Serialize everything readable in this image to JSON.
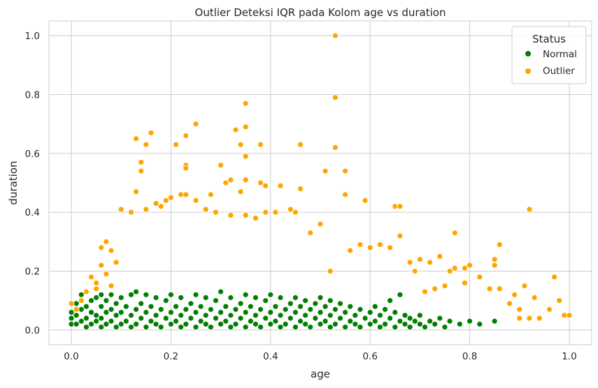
{
  "chart_data": {
    "type": "scatter",
    "title": "Outlier Deteksi IQR pada Kolom age vs duration",
    "xlabel": "age",
    "ylabel": "duration",
    "xlim": [
      -0.045,
      1.045
    ],
    "ylim": [
      -0.05,
      1.05
    ],
    "xticks": [
      "0.0",
      "0.2",
      "0.4",
      "0.6",
      "0.8",
      "1.0"
    ],
    "yticks": [
      "0.0",
      "0.2",
      "0.4",
      "0.6",
      "0.8",
      "1.0"
    ],
    "grid": true,
    "legend": {
      "title": "Status",
      "placement": "top-right",
      "entries": [
        {
          "label": "Normal",
          "color": "#007f00"
        },
        {
          "label": "Outlier",
          "color": "#ffa500"
        }
      ]
    },
    "series": [
      {
        "name": "Normal",
        "color": "#007f00",
        "points": [
          [
            0.0,
            0.02
          ],
          [
            0.0,
            0.04
          ],
          [
            0.0,
            0.06
          ],
          [
            0.01,
            0.09
          ],
          [
            0.01,
            0.05
          ],
          [
            0.01,
            0.02
          ],
          [
            0.02,
            0.03
          ],
          [
            0.02,
            0.07
          ],
          [
            0.02,
            0.12
          ],
          [
            0.03,
            0.01
          ],
          [
            0.03,
            0.04
          ],
          [
            0.03,
            0.08
          ],
          [
            0.04,
            0.02
          ],
          [
            0.04,
            0.06
          ],
          [
            0.04,
            0.1
          ],
          [
            0.05,
            0.03
          ],
          [
            0.05,
            0.05
          ],
          [
            0.05,
            0.11
          ],
          [
            0.06,
            0.01
          ],
          [
            0.06,
            0.04
          ],
          [
            0.06,
            0.08
          ],
          [
            0.06,
            0.12
          ],
          [
            0.07,
            0.02
          ],
          [
            0.07,
            0.06
          ],
          [
            0.07,
            0.1
          ],
          [
            0.08,
            0.03
          ],
          [
            0.08,
            0.07
          ],
          [
            0.08,
            0.12
          ],
          [
            0.09,
            0.01
          ],
          [
            0.09,
            0.05
          ],
          [
            0.09,
            0.09
          ],
          [
            0.1,
            0.02
          ],
          [
            0.1,
            0.06
          ],
          [
            0.1,
            0.11
          ],
          [
            0.11,
            0.03
          ],
          [
            0.11,
            0.08
          ],
          [
            0.12,
            0.01
          ],
          [
            0.12,
            0.05
          ],
          [
            0.12,
            0.12
          ],
          [
            0.13,
            0.02
          ],
          [
            0.13,
            0.07
          ],
          [
            0.13,
            0.13
          ],
          [
            0.14,
            0.04
          ],
          [
            0.14,
            0.09
          ],
          [
            0.15,
            0.01
          ],
          [
            0.15,
            0.06
          ],
          [
            0.15,
            0.12
          ],
          [
            0.16,
            0.03
          ],
          [
            0.16,
            0.08
          ],
          [
            0.17,
            0.02
          ],
          [
            0.17,
            0.05
          ],
          [
            0.17,
            0.11
          ],
          [
            0.18,
            0.01
          ],
          [
            0.18,
            0.07
          ],
          [
            0.19,
            0.04
          ],
          [
            0.19,
            0.1
          ],
          [
            0.2,
            0.02
          ],
          [
            0.2,
            0.06
          ],
          [
            0.2,
            0.12
          ],
          [
            0.21,
            0.03
          ],
          [
            0.21,
            0.08
          ],
          [
            0.22,
            0.01
          ],
          [
            0.22,
            0.05
          ],
          [
            0.22,
            0.11
          ],
          [
            0.23,
            0.02
          ],
          [
            0.23,
            0.07
          ],
          [
            0.24,
            0.04
          ],
          [
            0.24,
            0.09
          ],
          [
            0.25,
            0.01
          ],
          [
            0.25,
            0.06
          ],
          [
            0.25,
            0.12
          ],
          [
            0.26,
            0.03
          ],
          [
            0.26,
            0.08
          ],
          [
            0.27,
            0.02
          ],
          [
            0.27,
            0.05
          ],
          [
            0.27,
            0.11
          ],
          [
            0.28,
            0.01
          ],
          [
            0.28,
            0.07
          ],
          [
            0.29,
            0.04
          ],
          [
            0.29,
            0.1
          ],
          [
            0.3,
            0.02
          ],
          [
            0.3,
            0.06
          ],
          [
            0.3,
            0.13
          ],
          [
            0.31,
            0.03
          ],
          [
            0.31,
            0.08
          ],
          [
            0.32,
            0.01
          ],
          [
            0.32,
            0.05
          ],
          [
            0.32,
            0.11
          ],
          [
            0.33,
            0.02
          ],
          [
            0.33,
            0.07
          ],
          [
            0.34,
            0.04
          ],
          [
            0.34,
            0.09
          ],
          [
            0.35,
            0.01
          ],
          [
            0.35,
            0.06
          ],
          [
            0.35,
            0.12
          ],
          [
            0.36,
            0.03
          ],
          [
            0.36,
            0.08
          ],
          [
            0.37,
            0.02
          ],
          [
            0.37,
            0.05
          ],
          [
            0.37,
            0.11
          ],
          [
            0.38,
            0.01
          ],
          [
            0.38,
            0.07
          ],
          [
            0.39,
            0.04
          ],
          [
            0.39,
            0.1
          ],
          [
            0.4,
            0.02
          ],
          [
            0.4,
            0.06
          ],
          [
            0.4,
            0.12
          ],
          [
            0.41,
            0.03
          ],
          [
            0.41,
            0.08
          ],
          [
            0.42,
            0.01
          ],
          [
            0.42,
            0.05
          ],
          [
            0.42,
            0.11
          ],
          [
            0.43,
            0.02
          ],
          [
            0.43,
            0.07
          ],
          [
            0.44,
            0.04
          ],
          [
            0.44,
            0.09
          ],
          [
            0.45,
            0.01
          ],
          [
            0.45,
            0.06
          ],
          [
            0.45,
            0.11
          ],
          [
            0.46,
            0.03
          ],
          [
            0.46,
            0.08
          ],
          [
            0.47,
            0.02
          ],
          [
            0.47,
            0.05
          ],
          [
            0.47,
            0.1
          ],
          [
            0.48,
            0.01
          ],
          [
            0.48,
            0.07
          ],
          [
            0.49,
            0.04
          ],
          [
            0.49,
            0.09
          ],
          [
            0.5,
            0.02
          ],
          [
            0.5,
            0.06
          ],
          [
            0.5,
            0.11
          ],
          [
            0.51,
            0.03
          ],
          [
            0.51,
            0.08
          ],
          [
            0.52,
            0.01
          ],
          [
            0.52,
            0.05
          ],
          [
            0.52,
            0.1
          ],
          [
            0.53,
            0.02
          ],
          [
            0.53,
            0.07
          ],
          [
            0.54,
            0.04
          ],
          [
            0.54,
            0.09
          ],
          [
            0.55,
            0.01
          ],
          [
            0.55,
            0.06
          ],
          [
            0.56,
            0.03
          ],
          [
            0.56,
            0.08
          ],
          [
            0.57,
            0.02
          ],
          [
            0.57,
            0.05
          ],
          [
            0.58,
            0.01
          ],
          [
            0.58,
            0.07
          ],
          [
            0.59,
            0.04
          ],
          [
            0.6,
            0.02
          ],
          [
            0.6,
            0.06
          ],
          [
            0.61,
            0.03
          ],
          [
            0.61,
            0.08
          ],
          [
            0.62,
            0.01
          ],
          [
            0.62,
            0.05
          ],
          [
            0.63,
            0.02
          ],
          [
            0.63,
            0.07
          ],
          [
            0.64,
            0.04
          ],
          [
            0.64,
            0.1
          ],
          [
            0.65,
            0.01
          ],
          [
            0.65,
            0.06
          ],
          [
            0.66,
            0.03
          ],
          [
            0.66,
            0.12
          ],
          [
            0.67,
            0.02
          ],
          [
            0.67,
            0.05
          ],
          [
            0.68,
            0.01
          ],
          [
            0.68,
            0.04
          ],
          [
            0.69,
            0.03
          ],
          [
            0.7,
            0.02
          ],
          [
            0.7,
            0.05
          ],
          [
            0.71,
            0.01
          ],
          [
            0.72,
            0.03
          ],
          [
            0.73,
            0.02
          ],
          [
            0.74,
            0.04
          ],
          [
            0.75,
            0.01
          ],
          [
            0.76,
            0.03
          ],
          [
            0.78,
            0.02
          ],
          [
            0.8,
            0.03
          ],
          [
            0.82,
            0.02
          ],
          [
            0.85,
            0.03
          ]
        ]
      },
      {
        "name": "Outlier",
        "color": "#ffa500",
        "points": [
          [
            0.53,
            1.0
          ],
          [
            0.53,
            0.79
          ],
          [
            0.35,
            0.77
          ],
          [
            0.25,
            0.7
          ],
          [
            0.35,
            0.69
          ],
          [
            0.33,
            0.68
          ],
          [
            0.16,
            0.67
          ],
          [
            0.23,
            0.66
          ],
          [
            0.13,
            0.65
          ],
          [
            0.15,
            0.63
          ],
          [
            0.21,
            0.63
          ],
          [
            0.34,
            0.63
          ],
          [
            0.38,
            0.63
          ],
          [
            0.46,
            0.63
          ],
          [
            0.53,
            0.62
          ],
          [
            0.14,
            0.57
          ],
          [
            0.23,
            0.56
          ],
          [
            0.3,
            0.56
          ],
          [
            0.35,
            0.59
          ],
          [
            0.14,
            0.54
          ],
          [
            0.23,
            0.55
          ],
          [
            0.51,
            0.54
          ],
          [
            0.55,
            0.54
          ],
          [
            0.13,
            0.47
          ],
          [
            0.32,
            0.51
          ],
          [
            0.35,
            0.51
          ],
          [
            0.38,
            0.5
          ],
          [
            0.39,
            0.49
          ],
          [
            0.42,
            0.49
          ],
          [
            0.46,
            0.48
          ],
          [
            0.34,
            0.47
          ],
          [
            0.31,
            0.5
          ],
          [
            0.28,
            0.46
          ],
          [
            0.22,
            0.46
          ],
          [
            0.2,
            0.45
          ],
          [
            0.19,
            0.44
          ],
          [
            0.23,
            0.46
          ],
          [
            0.25,
            0.44
          ],
          [
            0.17,
            0.43
          ],
          [
            0.55,
            0.46
          ],
          [
            0.59,
            0.44
          ],
          [
            0.65,
            0.42
          ],
          [
            0.66,
            0.42
          ],
          [
            0.92,
            0.41
          ],
          [
            0.66,
            0.32
          ],
          [
            0.77,
            0.33
          ],
          [
            0.86,
            0.29
          ],
          [
            0.85,
            0.24
          ],
          [
            0.85,
            0.22
          ],
          [
            0.8,
            0.22
          ],
          [
            0.79,
            0.21
          ],
          [
            0.77,
            0.21
          ],
          [
            0.76,
            0.2
          ],
          [
            0.74,
            0.25
          ],
          [
            0.72,
            0.23
          ],
          [
            0.7,
            0.24
          ],
          [
            0.68,
            0.23
          ],
          [
            0.69,
            0.2
          ],
          [
            0.97,
            0.18
          ],
          [
            0.91,
            0.15
          ],
          [
            0.89,
            0.12
          ],
          [
            0.93,
            0.11
          ],
          [
            0.98,
            0.1
          ],
          [
            0.86,
            0.14
          ],
          [
            0.84,
            0.14
          ],
          [
            0.82,
            0.18
          ],
          [
            0.79,
            0.16
          ],
          [
            0.75,
            0.15
          ],
          [
            0.73,
            0.14
          ],
          [
            0.71,
            0.13
          ],
          [
            0.88,
            0.09
          ],
          [
            0.9,
            0.07
          ],
          [
            0.96,
            0.07
          ],
          [
            0.99,
            0.05
          ],
          [
            1.0,
            0.05
          ],
          [
            0.94,
            0.04
          ],
          [
            0.92,
            0.04
          ],
          [
            0.9,
            0.04
          ],
          [
            0.62,
            0.29
          ],
          [
            0.64,
            0.28
          ],
          [
            0.6,
            0.28
          ],
          [
            0.58,
            0.29
          ],
          [
            0.56,
            0.27
          ],
          [
            0.52,
            0.2
          ],
          [
            0.5,
            0.36
          ],
          [
            0.48,
            0.33
          ],
          [
            0.44,
            0.41
          ],
          [
            0.45,
            0.4
          ],
          [
            0.41,
            0.4
          ],
          [
            0.1,
            0.41
          ],
          [
            0.12,
            0.4
          ],
          [
            0.15,
            0.41
          ],
          [
            0.18,
            0.42
          ],
          [
            0.27,
            0.41
          ],
          [
            0.29,
            0.4
          ],
          [
            0.32,
            0.39
          ],
          [
            0.35,
            0.39
          ],
          [
            0.37,
            0.38
          ],
          [
            0.39,
            0.4
          ],
          [
            0.0,
            0.09
          ],
          [
            0.01,
            0.07
          ],
          [
            0.02,
            0.1
          ],
          [
            0.03,
            0.13
          ],
          [
            0.04,
            0.18
          ],
          [
            0.05,
            0.16
          ],
          [
            0.05,
            0.14
          ],
          [
            0.06,
            0.28
          ],
          [
            0.07,
            0.3
          ],
          [
            0.08,
            0.27
          ],
          [
            0.09,
            0.23
          ],
          [
            0.07,
            0.19
          ],
          [
            0.08,
            0.15
          ],
          [
            0.06,
            0.22
          ]
        ]
      }
    ]
  }
}
